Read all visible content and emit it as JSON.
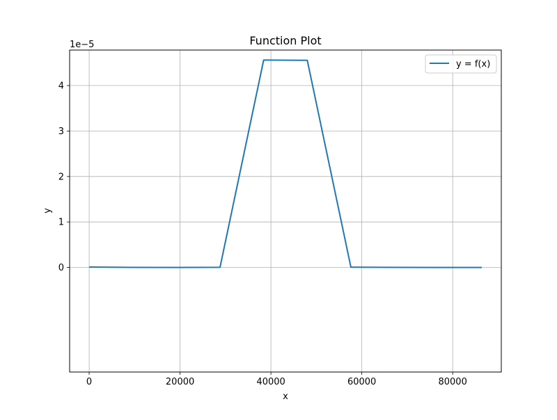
{
  "chart_data": {
    "type": "line",
    "title": "Function Plot",
    "xlabel": "x",
    "ylabel": "y",
    "y_offset_label": "1e−5",
    "xlim": [
      -4300,
      90700
    ],
    "ylim": [
      -2.3,
      4.78
    ],
    "y_scale_note": "values in units of 1e-5",
    "x_ticks": [
      0,
      20000,
      40000,
      60000,
      80000
    ],
    "x_tick_labels": [
      "0",
      "20000",
      "40000",
      "60000",
      "80000"
    ],
    "y_ticks": [
      0,
      1,
      2,
      3,
      4
    ],
    "y_tick_labels": [
      "0",
      "1",
      "2",
      "3",
      "4"
    ],
    "grid": true,
    "legend_position": "top-right",
    "series": [
      {
        "name": "y = f(x)",
        "color": "#1f77b4",
        "x": [
          0,
          9600,
          19200,
          28800,
          38400,
          48000,
          57600,
          67200,
          76800,
          86400
        ],
        "y": [
          0.01,
          0.002,
          0.0,
          0.004,
          4.56,
          4.555,
          0.005,
          0.001,
          0.0,
          0.0
        ]
      }
    ]
  }
}
